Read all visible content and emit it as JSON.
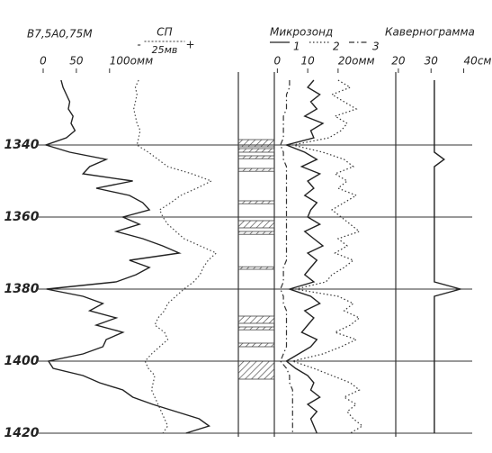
{
  "chart_data": {
    "type": "welllog",
    "depth": [
      1322,
      1324,
      1326,
      1328,
      1330,
      1332,
      1334,
      1336,
      1338,
      1340,
      1342,
      1344,
      1346,
      1348,
      1350,
      1352,
      1354,
      1356,
      1358,
      1360,
      1362,
      1364,
      1366,
      1368,
      1370,
      1372,
      1374,
      1376,
      1378,
      1380,
      1382,
      1384,
      1386,
      1388,
      1390,
      1392,
      1394,
      1396,
      1398,
      1400,
      1402,
      1404,
      1406,
      1408,
      1410,
      1412,
      1414,
      1416,
      1418,
      1420
    ],
    "ylim": [
      1321,
      1420
    ],
    "yticks": [
      1340,
      1360,
      1380,
      1400,
      1420
    ],
    "grid": true,
    "tracks": [
      {
        "xlim": [
          0,
          290
        ],
        "xticks": [
          0,
          50,
          {
            "value": 100,
            "label": "100омм"
          }
        ],
        "series": [
          {
            "name": "В7,5А0,75М",
            "color": "#222",
            "style": "solid",
            "values": [
              27,
              30,
              35,
              40,
              38,
              45,
              42,
              48,
              35,
              4,
              40,
              95,
              70,
              60,
              135,
              80,
              130,
              150,
              160,
              120,
              145,
              110,
              150,
              180,
              205,
              130,
              160,
              140,
              110,
              5,
              60,
              90,
              70,
              110,
              80,
              120,
              95,
              90,
              60,
              8,
              15,
              60,
              85,
              120,
              135,
              165,
              200,
              235,
              250,
              215
            ]
          },
          {
            "name": "СП",
            "color": "#444",
            "style": "dotted",
            "xlim": [
              -57,
              62
            ],
            "scale": {
              "value": 25,
              "label": "25мв"
            },
            "scale_signs": [
              "-",
              "+"
            ],
            "values": [
              2,
              0,
              1,
              0,
              -1,
              0,
              1,
              3,
              2,
              1,
              8,
              14,
              20,
              35,
              47,
              38,
              28,
              22,
              15,
              17,
              20,
              25,
              30,
              40,
              50,
              45,
              42,
              40,
              36,
              30,
              25,
              20,
              18,
              14,
              12,
              18,
              20,
              15,
              10,
              6,
              8,
              12,
              11,
              10,
              12,
              14,
              16,
              18,
              20,
              17
            ]
          }
        ]
      },
      {
        "color": "#444",
        "lithology": [
          [
            1338.5,
            1340.5
          ],
          [
            1341,
            1342
          ],
          [
            1343,
            1343.8
          ],
          [
            1346.5,
            1347.3
          ],
          [
            1355.5,
            1356.3
          ],
          [
            1361,
            1363
          ],
          [
            1364,
            1364.8
          ],
          [
            1373.8,
            1374.5
          ],
          [
            1387.5,
            1389.5
          ],
          [
            1390.5,
            1391.3
          ],
          [
            1395,
            1396
          ],
          [
            1400,
            1405
          ]
        ]
      },
      {
        "title": "Микрозонд",
        "xlim": [
          -1,
          39
        ],
        "xticks": [
          0,
          10,
          {
            "value": 20,
            "label": "20омм"
          }
        ],
        "series": [
          {
            "name": "1",
            "color": "#222",
            "style": "solid",
            "values": [
              12,
              10,
              14,
              11,
              13,
              9,
              15,
              11,
              12,
              3,
              9,
              13,
              8,
              14,
              10,
              12,
              9,
              13,
              11,
              10,
              14,
              9,
              12,
              15,
              10,
              13,
              11,
              9,
              12,
              4,
              11,
              14,
              9,
              12,
              10,
              8,
              13,
              11,
              7,
              3,
              6,
              10,
              12,
              11,
              14,
              10,
              13,
              11,
              12,
              13
            ]
          },
          {
            "name": "2",
            "color": "#333",
            "style": "dotted",
            "values": [
              20,
              24,
              18,
              22,
              26,
              19,
              23,
              21,
              17,
              5,
              15,
              22,
              25,
              19,
              23,
              20,
              26,
              22,
              18,
              21,
              24,
              27,
              20,
              23,
              19,
              25,
              22,
              18,
              16,
              6,
              20,
              25,
              22,
              27,
              24,
              19,
              26,
              21,
              15,
              5,
              12,
              18,
              24,
              27,
              22,
              26,
              23,
              25,
              28,
              24
            ]
          },
          {
            "name": "3",
            "color": "#333",
            "style": "dashdot",
            "values": [
              4,
              4,
              3,
              3,
              3,
              2,
              2,
              2,
              2,
              1,
              2,
              2,
              3,
              3,
              3,
              3,
              3,
              3,
              3,
              3,
              3,
              3,
              3,
              3,
              3,
              3,
              2,
              2,
              2,
              1,
              2,
              2,
              3,
              3,
              3,
              3,
              3,
              3,
              2,
              1,
              3,
              4,
              4,
              5,
              5,
              5,
              5,
              5,
              5,
              5
            ]
          }
        ]
      },
      {
        "title": "Кавернограмма",
        "xlim": [
          19.2,
          42.6
        ],
        "xticks": [
          20,
          30,
          {
            "value": 40,
            "label": "40см"
          }
        ],
        "series": [
          {
            "color": "#222",
            "style": "solid",
            "values": [
              31,
              31,
              31,
              31,
              31,
              31,
              31,
              31,
              31,
              31,
              31,
              34,
              31,
              31,
              31,
              31,
              31,
              31,
              31,
              31,
              31,
              31,
              31,
              31,
              31,
              31,
              31,
              31,
              31,
              39,
              31,
              31,
              31,
              31,
              31,
              31,
              31,
              31,
              31,
              31,
              31,
              31,
              31,
              31,
              31,
              31,
              31,
              31,
              31,
              31
            ]
          }
        ]
      }
    ]
  }
}
